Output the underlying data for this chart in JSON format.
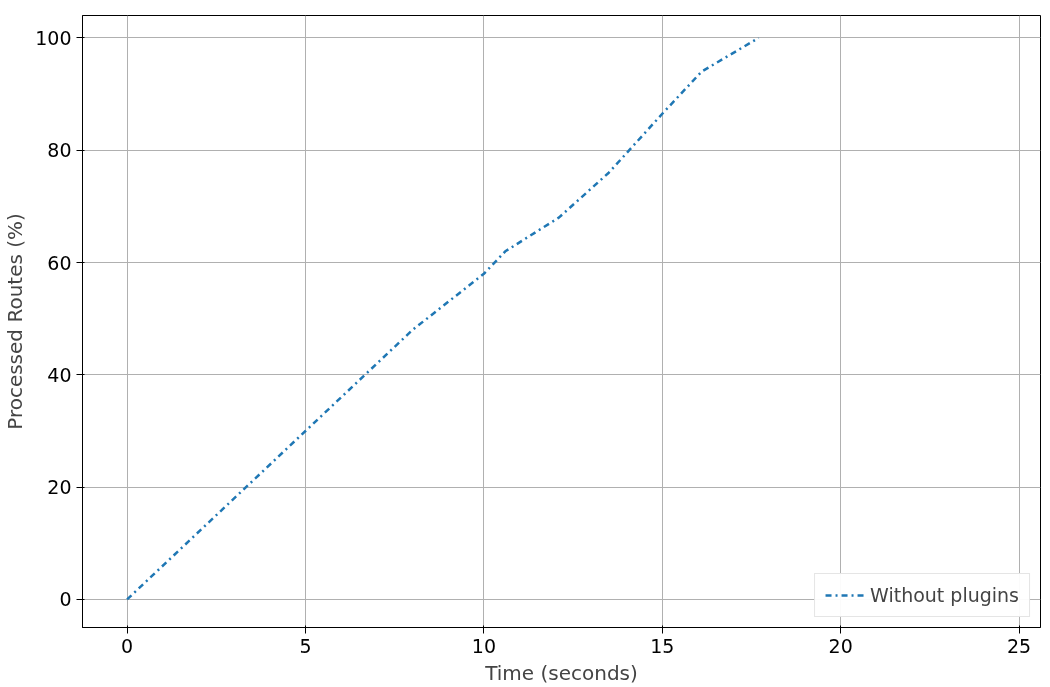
{
  "chart_data": {
    "type": "line",
    "xlabel": "Time (seconds)",
    "ylabel": "Processed Routes (%)",
    "x": [
      0,
      2.5,
      5,
      6.5,
      8,
      9,
      10,
      10.6,
      12.1,
      13.5,
      15,
      16.1,
      17.7
    ],
    "series": [
      {
        "name": "Without plugins",
        "color": "#1f77b4",
        "values": [
          0,
          15,
          30,
          39,
          48,
          53,
          58,
          62,
          68,
          76,
          86.5,
          94,
          100
        ]
      }
    ],
    "xlim": [
      -1.25,
      25.6
    ],
    "ylim": [
      -5,
      104
    ],
    "xticks": [
      0,
      5,
      10,
      15,
      20,
      25
    ],
    "yticks": [
      0,
      20,
      40,
      60,
      80,
      100
    ],
    "grid": true,
    "legend": "bottom right",
    "line_style": "dashdot",
    "marker": "none"
  }
}
